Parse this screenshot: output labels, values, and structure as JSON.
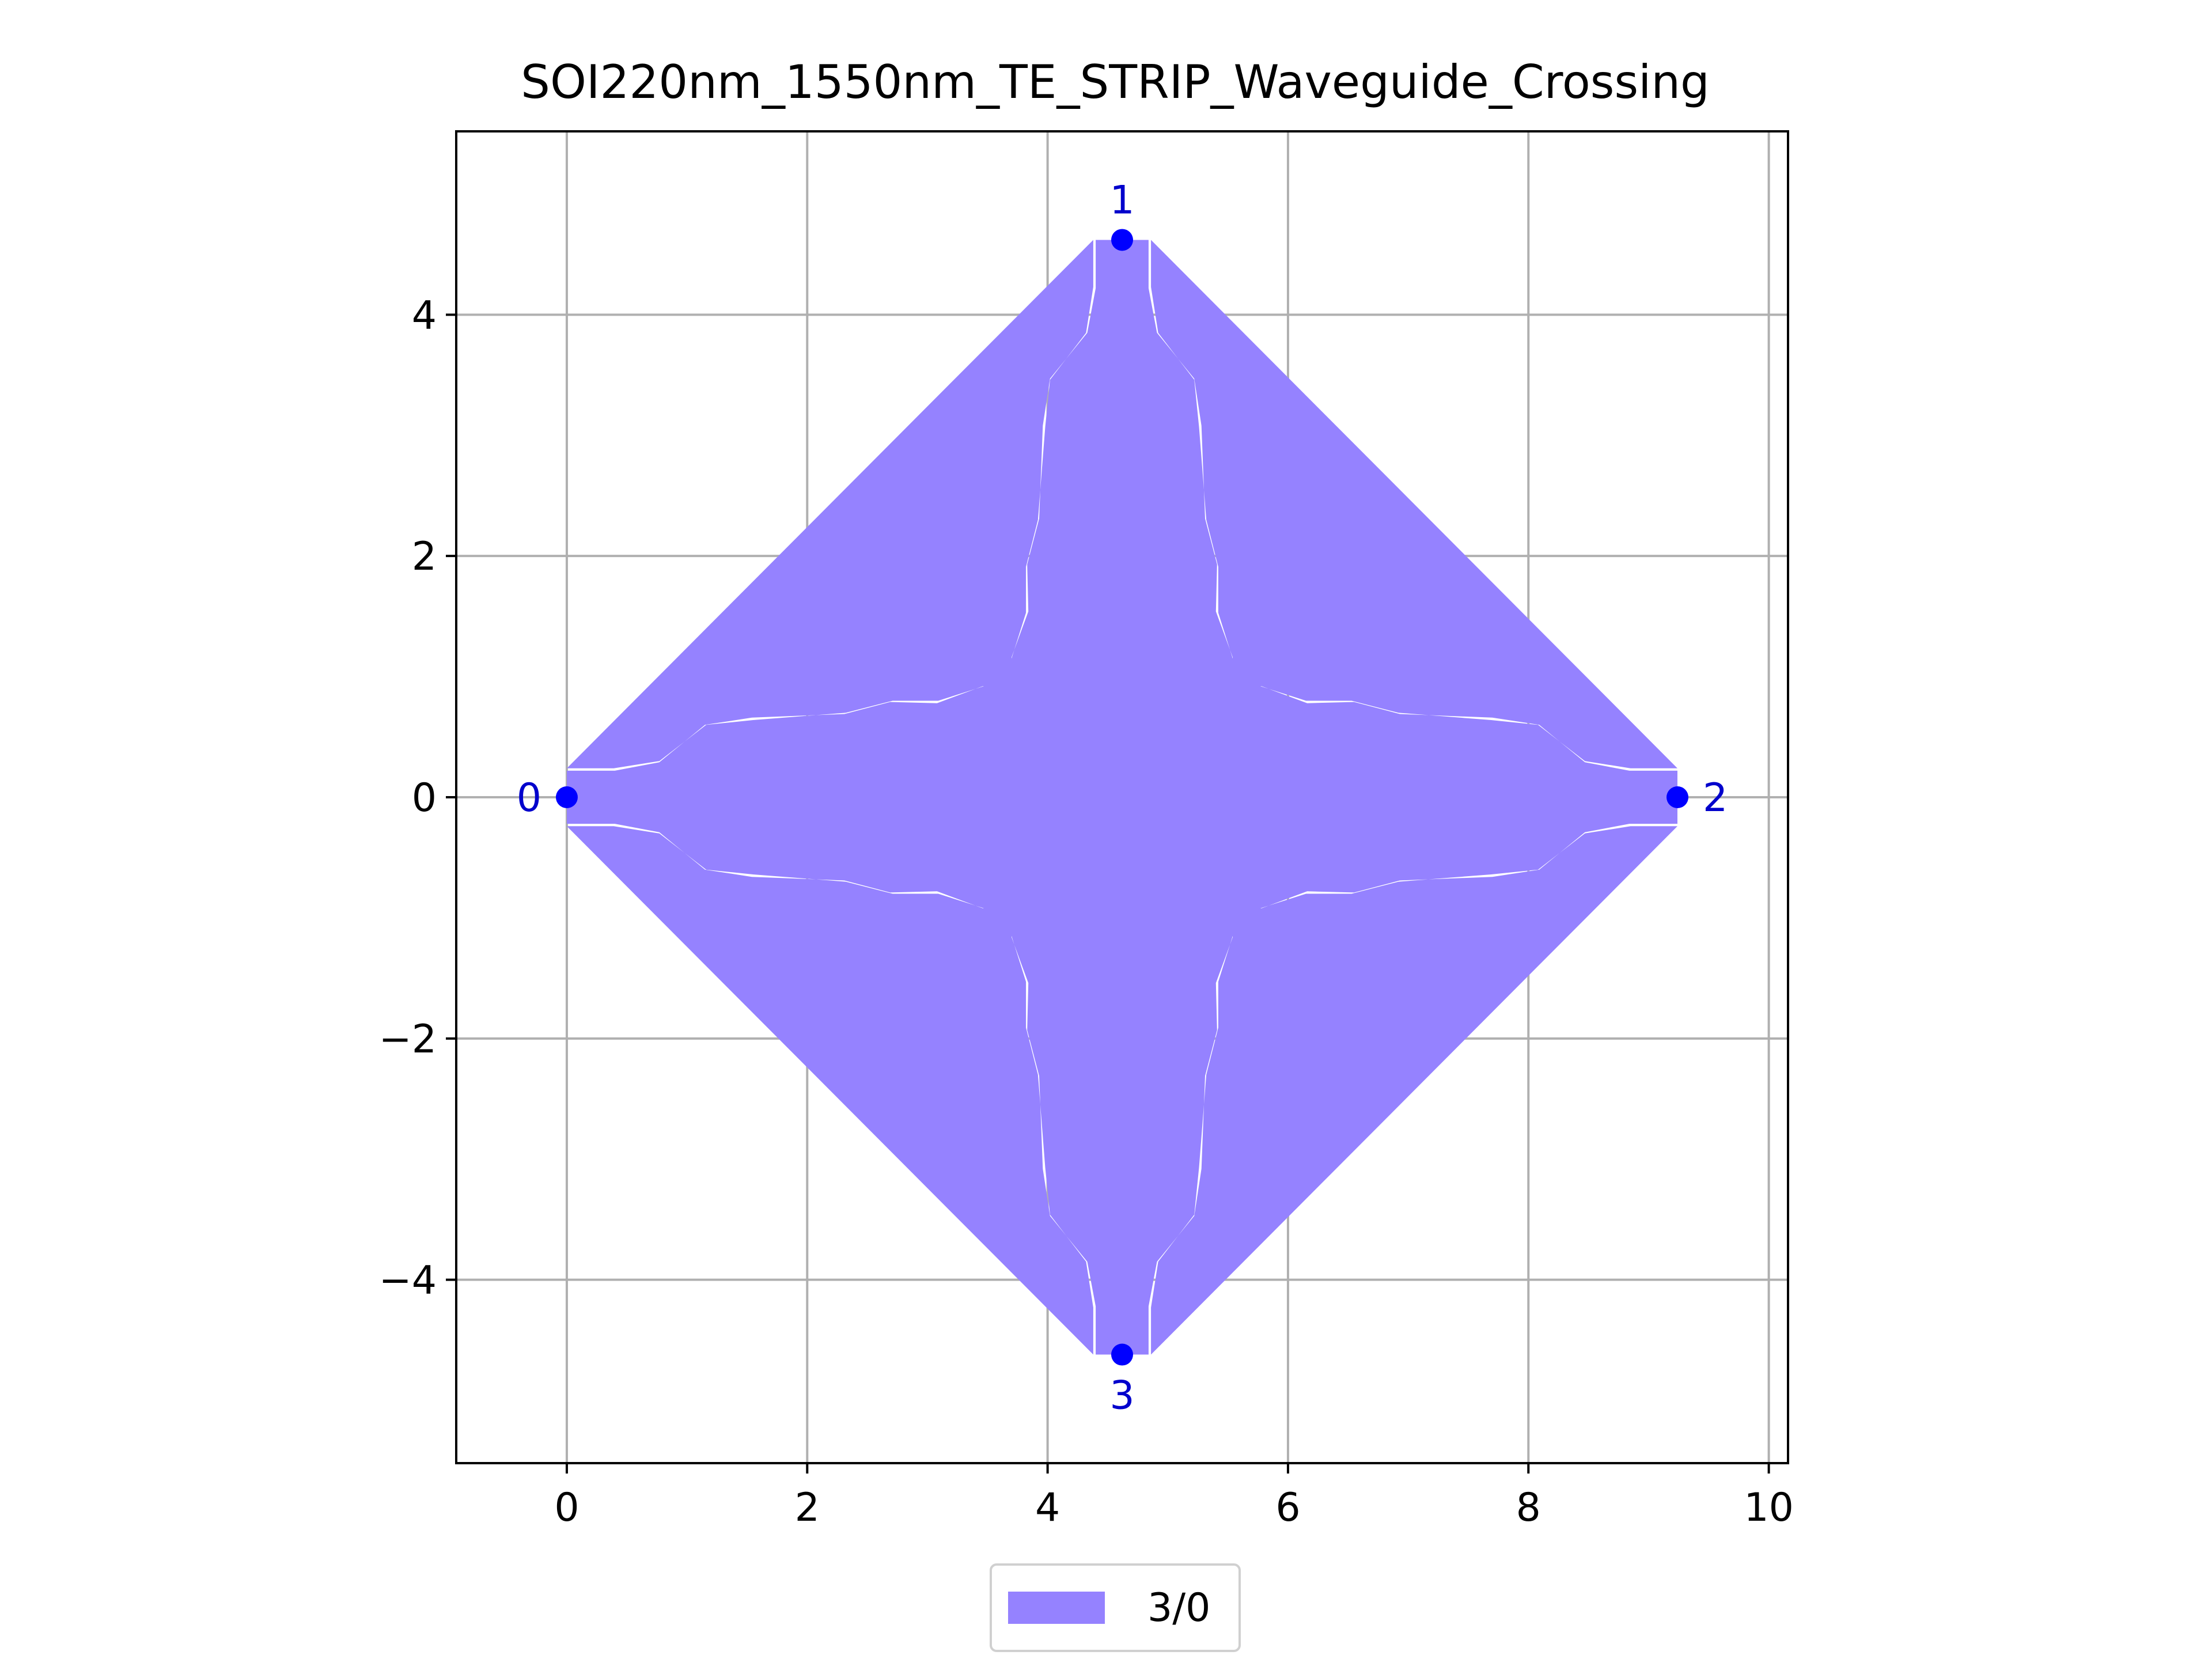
{
  "chart_data": {
    "type": "area",
    "title": "SOI220nm_1550nm_TE_STRIP_Waveguide_Crossing",
    "xlabel": "",
    "ylabel": "",
    "xlim": [
      -0.92,
      10.16
    ],
    "ylim": [
      -5.52,
      5.52
    ],
    "x_ticks": [
      0,
      2,
      4,
      6,
      8,
      10
    ],
    "y_ticks": [
      -4,
      -2,
      0,
      2,
      4
    ],
    "x_tick_labels": [
      "0",
      "2",
      "4",
      "6",
      "8",
      "10"
    ],
    "y_tick_labels": [
      "−4",
      "−2",
      "0",
      "2",
      "4"
    ],
    "grid": true,
    "aspect": "equal",
    "legend_position": "below-center",
    "series": [
      {
        "name": "3/0",
        "color": "#9582ff",
        "center": [
          4.62,
          0
        ],
        "arm_profile": [
          [
            0.0,
            0.22
          ],
          [
            0.4,
            0.22
          ],
          [
            0.77,
            0.29
          ],
          [
            1.15,
            0.6
          ],
          [
            1.54,
            0.66
          ],
          [
            2.31,
            0.69
          ],
          [
            2.69,
            0.79
          ],
          [
            3.08,
            0.78
          ],
          [
            3.46,
            0.92
          ],
          [
            3.7,
            0.92
          ],
          [
            3.7,
            1.15
          ],
          [
            3.82,
            1.53
          ],
          [
            3.82,
            1.91
          ],
          [
            3.92,
            2.3
          ],
          [
            3.98,
            3.07
          ],
          [
            4.02,
            3.46
          ],
          [
            4.32,
            3.85
          ],
          [
            4.38,
            4.23
          ],
          [
            4.38,
            4.62
          ]
        ]
      }
    ],
    "ports": [
      {
        "label": "0",
        "x": 0.0,
        "y": 0.0,
        "label_side": "left"
      },
      {
        "label": "1",
        "x": 4.62,
        "y": 4.62,
        "label_side": "above"
      },
      {
        "label": "2",
        "x": 9.24,
        "y": 0.0,
        "label_side": "right"
      },
      {
        "label": "3",
        "x": 4.62,
        "y": -4.62,
        "label_side": "below"
      }
    ],
    "port_color": "#0000ff",
    "port_label_color": "#0000cc"
  }
}
